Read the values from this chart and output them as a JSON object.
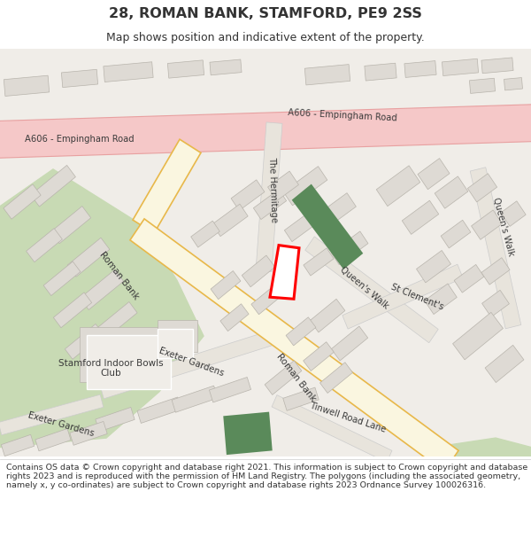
{
  "title": "28, ROMAN BANK, STAMFORD, PE9 2SS",
  "subtitle": "Map shows position and indicative extent of the property.",
  "footer": "Contains OS data © Crown copyright and database right 2021. This information is subject to Crown copyright and database rights 2023 and is reproduced with the permission of HM Land Registry. The polygons (including the associated geometry, namely x, y co-ordinates) are subject to Crown copyright and database rights 2023 Ordnance Survey 100026316.",
  "map_bg": "#f0ede8",
  "road_main_color": "#faf6e0",
  "road_main_border": "#e8b84a",
  "road_a_color": "#f5c8c8",
  "road_a_border": "#e8a0a0",
  "green_area": "#c8dab4",
  "building_color": "#dedad4",
  "building_border": "#b8b4ac",
  "plot_fill": "#ffffff",
  "plot_border": "#ff0000",
  "indicator_fill": "#5a8a5a",
  "text_color": "#333333",
  "street_color": "#e8e4dc",
  "street_border": "#cccccc"
}
